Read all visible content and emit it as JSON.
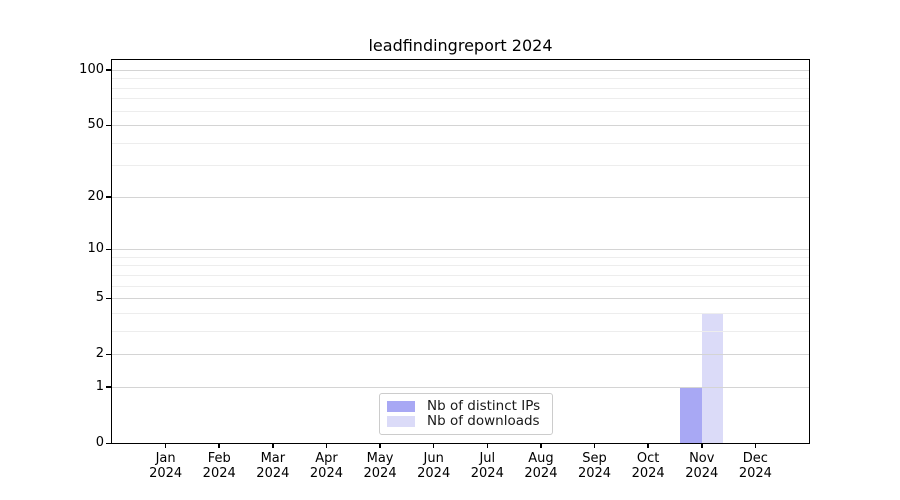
{
  "figure": {
    "background": "#ffffff"
  },
  "chart_data": {
    "type": "bar",
    "title": "leadfindingreport 2024",
    "xlabel": "",
    "ylabel": "",
    "categories": [
      "Jan\n2024",
      "Feb\n2024",
      "Mar\n2024",
      "Apr\n2024",
      "May\n2024",
      "Jun\n2024",
      "Jul\n2024",
      "Aug\n2024",
      "Sep\n2024",
      "Oct\n2024",
      "Nov\n2024",
      "Dec\n2024"
    ],
    "series": [
      {
        "name": "Nb of distinct IPs",
        "color": "#a8a8f4",
        "values": [
          0,
          0,
          0,
          0,
          0,
          0,
          0,
          0,
          0,
          0,
          1,
          0
        ]
      },
      {
        "name": "Nb of downloads",
        "color": "#dbdbf8",
        "values": [
          0,
          0,
          0,
          0,
          0,
          0,
          0,
          0,
          0,
          0,
          4,
          0
        ]
      }
    ],
    "yscale": "log1p",
    "ylim": [
      0,
      113
    ],
    "y_major_ticks": [
      0,
      1,
      2,
      5,
      10,
      20,
      50,
      100
    ],
    "y_minor_ticks": [
      3,
      4,
      6,
      7,
      8,
      9,
      30,
      40,
      60,
      70,
      80,
      90
    ],
    "grid": "horizontal",
    "legend_position": "inside-bottom-center",
    "colors": {
      "major_grid": "#d4d4d4",
      "minor_grid": "#ededed",
      "axis": "#000000",
      "text": "#000000"
    }
  }
}
